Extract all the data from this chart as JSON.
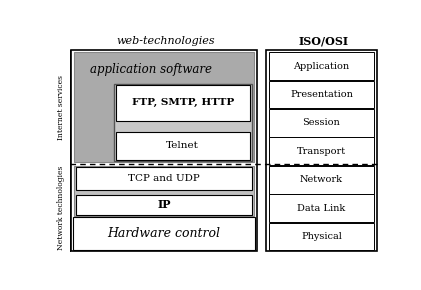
{
  "title_left": "web-technologies",
  "title_right": "ISO/OSI",
  "label_internet": "Internet services",
  "label_network": "Network technologies",
  "osi_layers": [
    "Application",
    "Presentation",
    "Session",
    "Transport",
    "Network",
    "Data Link",
    "Physical"
  ],
  "web_layers": [
    "application software",
    "FTP, SMTP, HTTP",
    "Telnet",
    "TCP and UDP",
    "IP",
    "Hardware control"
  ],
  "bg_color": "#ffffff",
  "gray_app": "#aaaaaa",
  "gray_nest": "#c8c8c8",
  "gray_tcpip": "#c0c0c0",
  "fig_w": 4.21,
  "fig_h": 2.9,
  "dpi": 100
}
